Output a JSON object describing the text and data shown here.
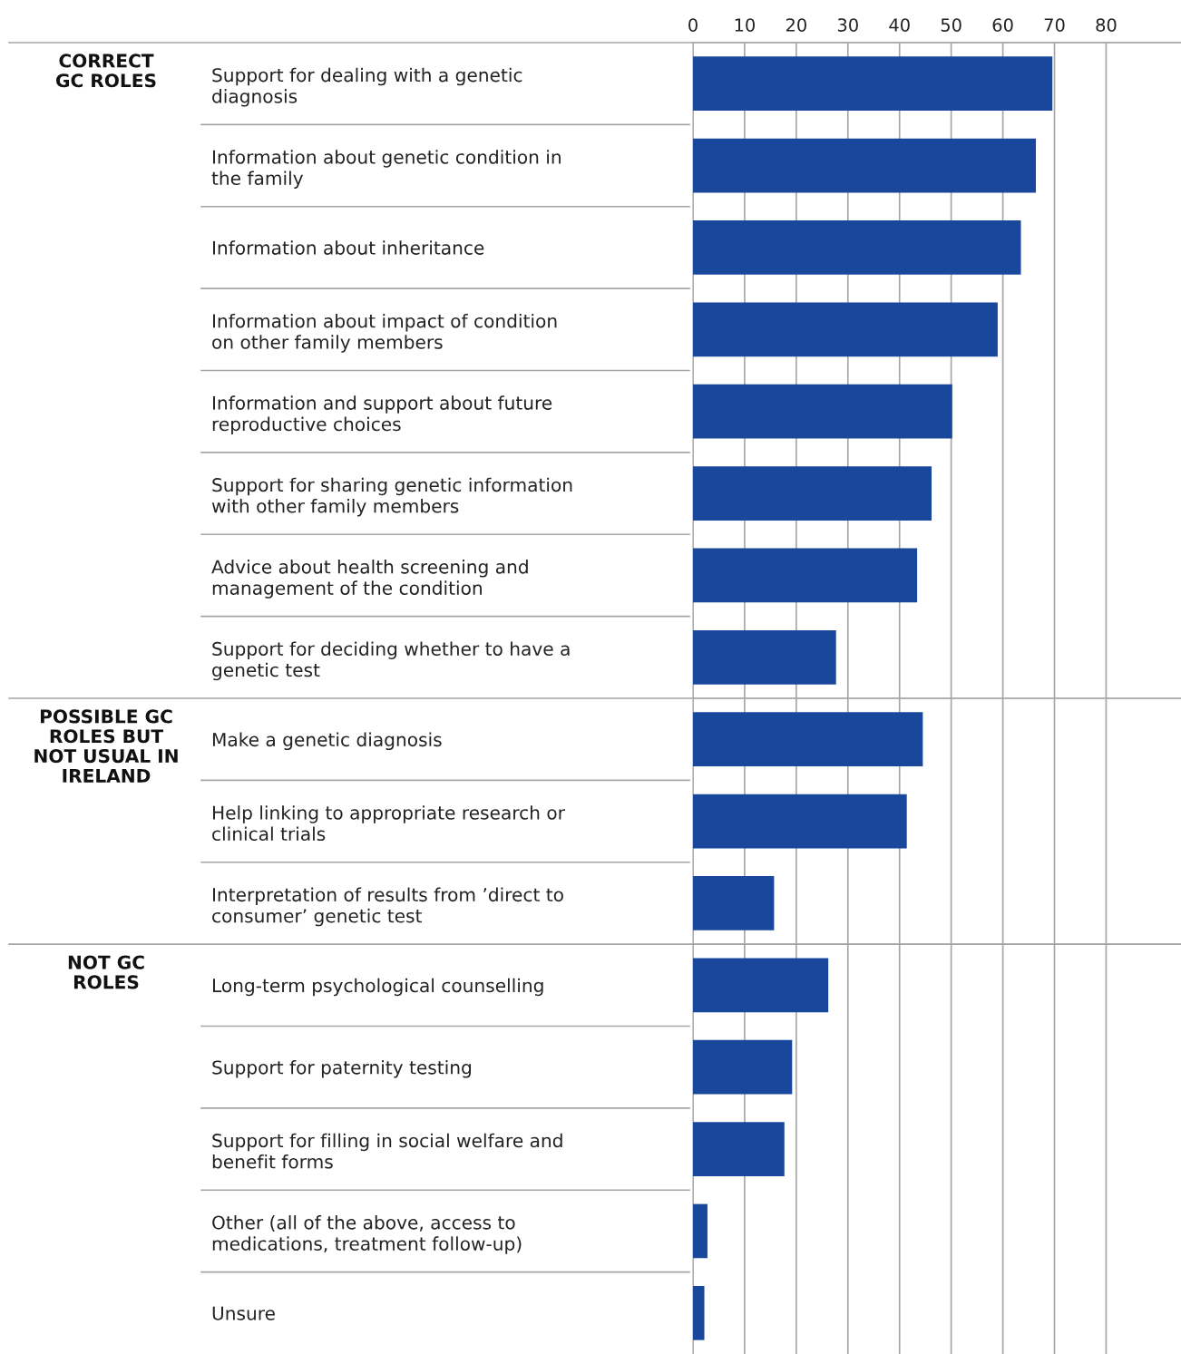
{
  "chart_data": [
    {
      "type": "bar",
      "orientation": "horizontal",
      "title": "CORRECT\nGC ROLES",
      "categories": [
        "Support for dealing with a genetic\ndiagnosis",
        "Information about genetic condition in\nthe family",
        "Information about inheritance",
        "Information about impact of condition\non other family members",
        "Information and support about future\nreproductive choices",
        "Support for sharing genetic information\nwith other family members",
        "Advice about health screening and\nmanagement of the condition",
        "Support for deciding whether to have a\ngenetic test"
      ],
      "values": [
        69.6,
        66.4,
        63.5,
        59,
        50.2,
        46.2,
        43.4,
        27.7
      ],
      "color": "#18479c",
      "xlim": [
        0,
        94.5
      ],
      "xticks": [
        0,
        10,
        20,
        30,
        40,
        50,
        60,
        70,
        80
      ],
      "grid": "x"
    },
    {
      "type": "bar",
      "orientation": "horizontal",
      "title": "POSSIBLE GC\nROLES BUT\nNOT USUAL IN\nIRELAND",
      "categories": [
        "Make a genetic diagnosis",
        "Help linking to appropriate research or\nclinical trials",
        "Interpretation of results from ’direct to\nconsumer’ genetic test"
      ],
      "values": [
        44.5,
        41.4,
        15.7
      ],
      "color": "#18479c",
      "xlim": [
        0,
        94.5
      ],
      "xticks": [
        0,
        10,
        20,
        30,
        40,
        50,
        60,
        70,
        80
      ],
      "grid": "x",
      "tick_labels": "y"
    },
    {
      "type": "bar",
      "orientation": "horizontal",
      "title": "NOT GC\nROLES",
      "categories": [
        "Long-term psychological counselling",
        "Support for paternity testing",
        "Support for filling in social welfare and\nbenefit forms",
        "Other (all of the above, access to\nmedications, treatment follow-up)",
        "Unsure"
      ],
      "values": [
        26.2,
        19.2,
        17.7,
        2.8,
        2.2
      ],
      "color": "#18479c",
      "xlim": [
        0,
        94.5
      ],
      "xticks": [
        0,
        10,
        20,
        30,
        40,
        50,
        60,
        70,
        80
      ],
      "grid": "x",
      "tick_labels": "y"
    }
  ]
}
